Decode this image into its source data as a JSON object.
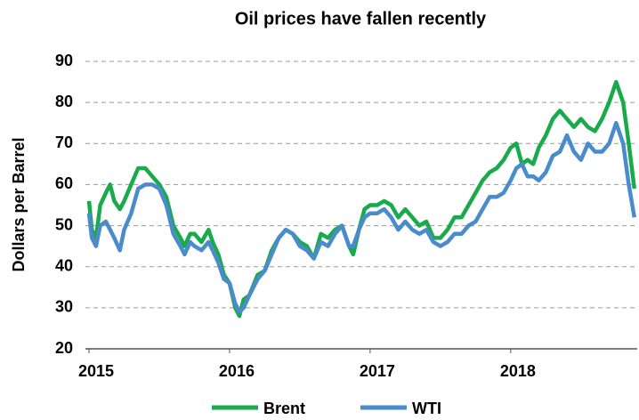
{
  "chart_data": {
    "type": "line",
    "title": "Oil prices have fallen recently",
    "ylabel": "Dollars per Barrel",
    "x": [
      2015.0,
      2015.02,
      2015.05,
      2015.08,
      2015.12,
      2015.15,
      2015.18,
      2015.22,
      2015.25,
      2015.3,
      2015.35,
      2015.4,
      2015.45,
      2015.5,
      2015.55,
      2015.6,
      2015.65,
      2015.68,
      2015.72,
      2015.75,
      2015.8,
      2015.85,
      2015.88,
      2015.92,
      2015.96,
      2016.0,
      2016.04,
      2016.07,
      2016.1,
      2016.14,
      2016.2,
      2016.25,
      2016.3,
      2016.35,
      2016.4,
      2016.45,
      2016.5,
      2016.55,
      2016.6,
      2016.65,
      2016.7,
      2016.75,
      2016.8,
      2016.85,
      2016.88,
      2016.92,
      2016.96,
      2017.0,
      2017.05,
      2017.1,
      2017.15,
      2017.2,
      2017.25,
      2017.3,
      2017.35,
      2017.4,
      2017.45,
      2017.5,
      2017.55,
      2017.6,
      2017.65,
      2017.7,
      2017.75,
      2017.8,
      2017.85,
      2017.9,
      2017.95,
      2018.0,
      2018.04,
      2018.08,
      2018.12,
      2018.16,
      2018.2,
      2018.25,
      2018.3,
      2018.35,
      2018.4,
      2018.45,
      2018.5,
      2018.55,
      2018.6,
      2018.65,
      2018.7,
      2018.75,
      2018.8,
      2018.84,
      2018.88
    ],
    "series": [
      {
        "name": "Brent",
        "color": "#19aa4b",
        "values": [
          56,
          49,
          47,
          55,
          58,
          60,
          56,
          54,
          56,
          60,
          64,
          64,
          62,
          60,
          57,
          50,
          47,
          45,
          48,
          48,
          46,
          49,
          46,
          43,
          38,
          36,
          30,
          28,
          32,
          33,
          38,
          39,
          44,
          47,
          49,
          48,
          46,
          45,
          42,
          48,
          47,
          49,
          50,
          45,
          43,
          49,
          54,
          55,
          55,
          56,
          55,
          52,
          54,
          52,
          50,
          51,
          47,
          47,
          49,
          52,
          52,
          55,
          58,
          61,
          63,
          64,
          66,
          69,
          70,
          65,
          66,
          65,
          69,
          72,
          76,
          78,
          76,
          74,
          76,
          74,
          73,
          76,
          80,
          85,
          80,
          70,
          59
        ]
      },
      {
        "name": "WTI",
        "color": "#4a8ccb",
        "values": [
          53,
          47,
          45,
          50,
          51,
          49,
          47,
          44,
          49,
          53,
          59,
          60,
          60,
          59,
          55,
          48,
          45,
          43,
          46,
          45,
          44,
          46,
          44,
          41,
          37,
          36,
          31,
          29,
          30,
          33,
          37,
          39,
          43,
          47,
          49,
          48,
          45,
          44,
          42,
          46,
          45,
          48,
          50,
          45,
          45,
          49,
          52,
          53,
          53,
          54,
          52,
          49,
          51,
          49,
          48,
          49,
          46,
          45,
          46,
          48,
          48,
          50,
          51,
          54,
          57,
          57,
          58,
          61,
          64,
          65,
          62,
          62,
          61,
          63,
          67,
          68,
          72,
          68,
          66,
          70,
          68,
          68,
          70,
          75,
          70,
          60,
          52
        ]
      }
    ],
    "xlim": [
      2015,
      2018.9
    ],
    "xticks": [
      2015,
      2016,
      2017,
      2018
    ],
    "ylim": [
      20,
      90
    ],
    "yticks": [
      20,
      30,
      40,
      50,
      60,
      70,
      80,
      90
    ],
    "grid": true,
    "legend": "bottom"
  }
}
